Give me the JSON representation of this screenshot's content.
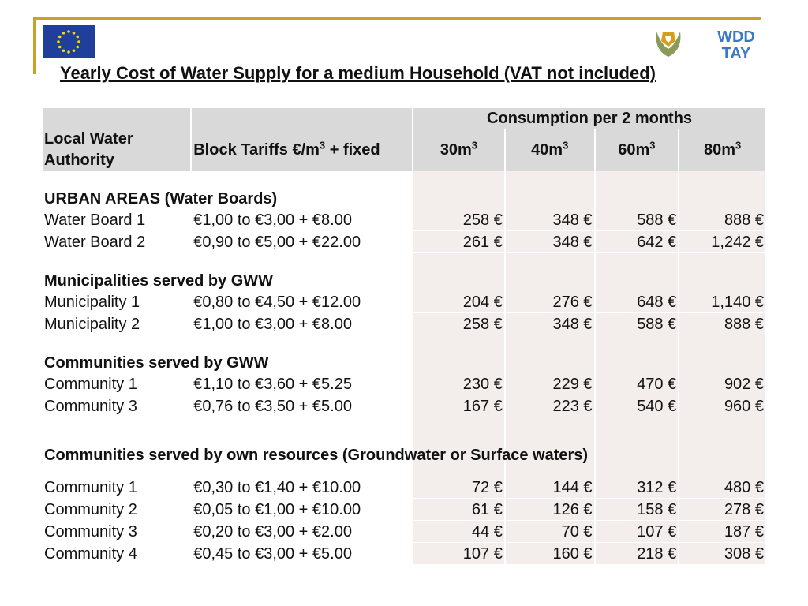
{
  "title": "Yearly Cost of Water Supply for a medium Household (VAT not included)",
  "logos": {
    "left": "eu-flag",
    "right": [
      "cyprus-emblem",
      "wdd-tay-logo"
    ],
    "wdd_text_top": "WDD",
    "wdd_text_bottom": "TAY"
  },
  "colors": {
    "accent": "#c9a227",
    "header_bg": "#d9d9d9",
    "cell_bg": "#f3eeeb",
    "eu_blue": "#1f3f9a",
    "eu_star": "#ffd700",
    "wdd_blue": "#3c78c8"
  },
  "table": {
    "header": {
      "consumption": "Consumption per 2 months",
      "authority": "Local Water Authority",
      "tariff": "Block Tariffs €/m",
      "tariff_sup": "3",
      "tariff_suffix": " + fixed",
      "cols": [
        {
          "base": "30m",
          "sup": "3"
        },
        {
          "base": "40m",
          "sup": "3"
        },
        {
          "base": "60m",
          "sup": "3"
        },
        {
          "base": "80m",
          "sup": "3"
        }
      ]
    },
    "sections": [
      {
        "title": "URBAN AREAS (Water Boards)",
        "rows": [
          {
            "name": "Water Board 1",
            "tariff": "€1,00 to €3,00 + €8.00",
            "values": [
              "258 €",
              "348 €",
              "588 €",
              "888 €"
            ]
          },
          {
            "name": "Water Board 2",
            "tariff": "€0,90 to €5,00 + €22.00",
            "values": [
              "261 €",
              "348 €",
              "642 €",
              "1,242 €"
            ]
          }
        ]
      },
      {
        "title": "Municipalities served by GWW",
        "rows": [
          {
            "name": "Municipality 1",
            "tariff": "€0,80 to €4,50 + €12.00",
            "values": [
              "204 €",
              "276 €",
              "648 €",
              "1,140 €"
            ]
          },
          {
            "name": "Municipality 2",
            "tariff": "€1,00 to €3,00 + €8.00",
            "values": [
              "258 €",
              "348 €",
              "588 €",
              "888 €"
            ]
          }
        ]
      },
      {
        "title": "Communities served by GWW",
        "rows": [
          {
            "name": "Community 1",
            "tariff": "€1,10 to €3,60 + €5.25",
            "values": [
              "230 €",
              "229 €",
              "470 €",
              "902 €"
            ]
          },
          {
            "name": "Community 3",
            "tariff": "€0,76 to €3,50 + €5.00",
            "values": [
              "167 €",
              "223 €",
              "540 €",
              "960 €"
            ]
          }
        ]
      },
      {
        "title": "Communities served by own resources (Groundwater or Surface waters)",
        "rows": [
          {
            "name": "Community 1",
            "tariff": "€0,30 to €1,40 + €10.00",
            "values": [
              "72 €",
              "144 €",
              "312 €",
              "480 €"
            ]
          },
          {
            "name": "Community 2",
            "tariff": "€0,05 to €1,00 + €10.00",
            "values": [
              "61 €",
              "126 €",
              "158 €",
              "278 €"
            ]
          },
          {
            "name": "Community 3",
            "tariff": "€0,20 to €3,00 + €2.00",
            "values": [
              "44 €",
              "70 €",
              "107 €",
              "187 €"
            ]
          },
          {
            "name": "Community 4",
            "tariff": "€0,45 to €3,00 + €5.00",
            "values": [
              "107 €",
              "160 €",
              "218 €",
              "308 €"
            ]
          }
        ]
      }
    ]
  }
}
